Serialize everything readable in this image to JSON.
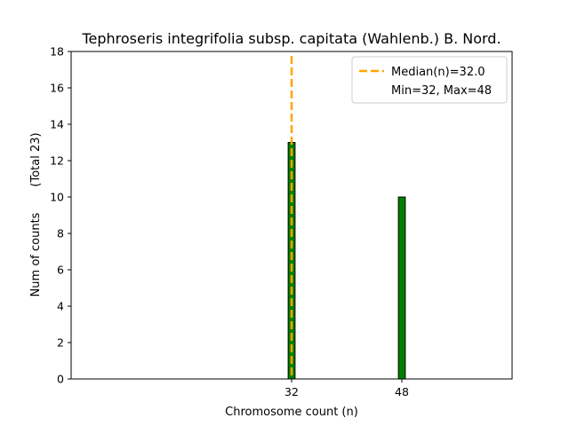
{
  "chart_data": {
    "type": "bar",
    "title": "Tephroseris integrifolia subsp. capitata (Wahlenb.) B. Nord.",
    "xlabel": "Chromosome count (n)",
    "ylabel": "Num of counts",
    "ylabel_total": "(Total 23)",
    "xlim": [
      0,
      64
    ],
    "ylim": [
      0,
      18
    ],
    "xticks": [
      32,
      48
    ],
    "yticks": [
      0,
      2,
      4,
      6,
      8,
      10,
      12,
      14,
      16,
      18
    ],
    "bar_width": 1,
    "bars": [
      {
        "x": 32,
        "value": 13
      },
      {
        "x": 48,
        "value": 10
      }
    ],
    "bar_color": "#008000",
    "bar_edge_color": "#000000",
    "median": {
      "value": 32.0,
      "label": "Median(n)=32.0",
      "color": "#ffa500"
    },
    "range_label": "Min=32, Max=48",
    "legend_position": "top-right",
    "grid": false
  }
}
